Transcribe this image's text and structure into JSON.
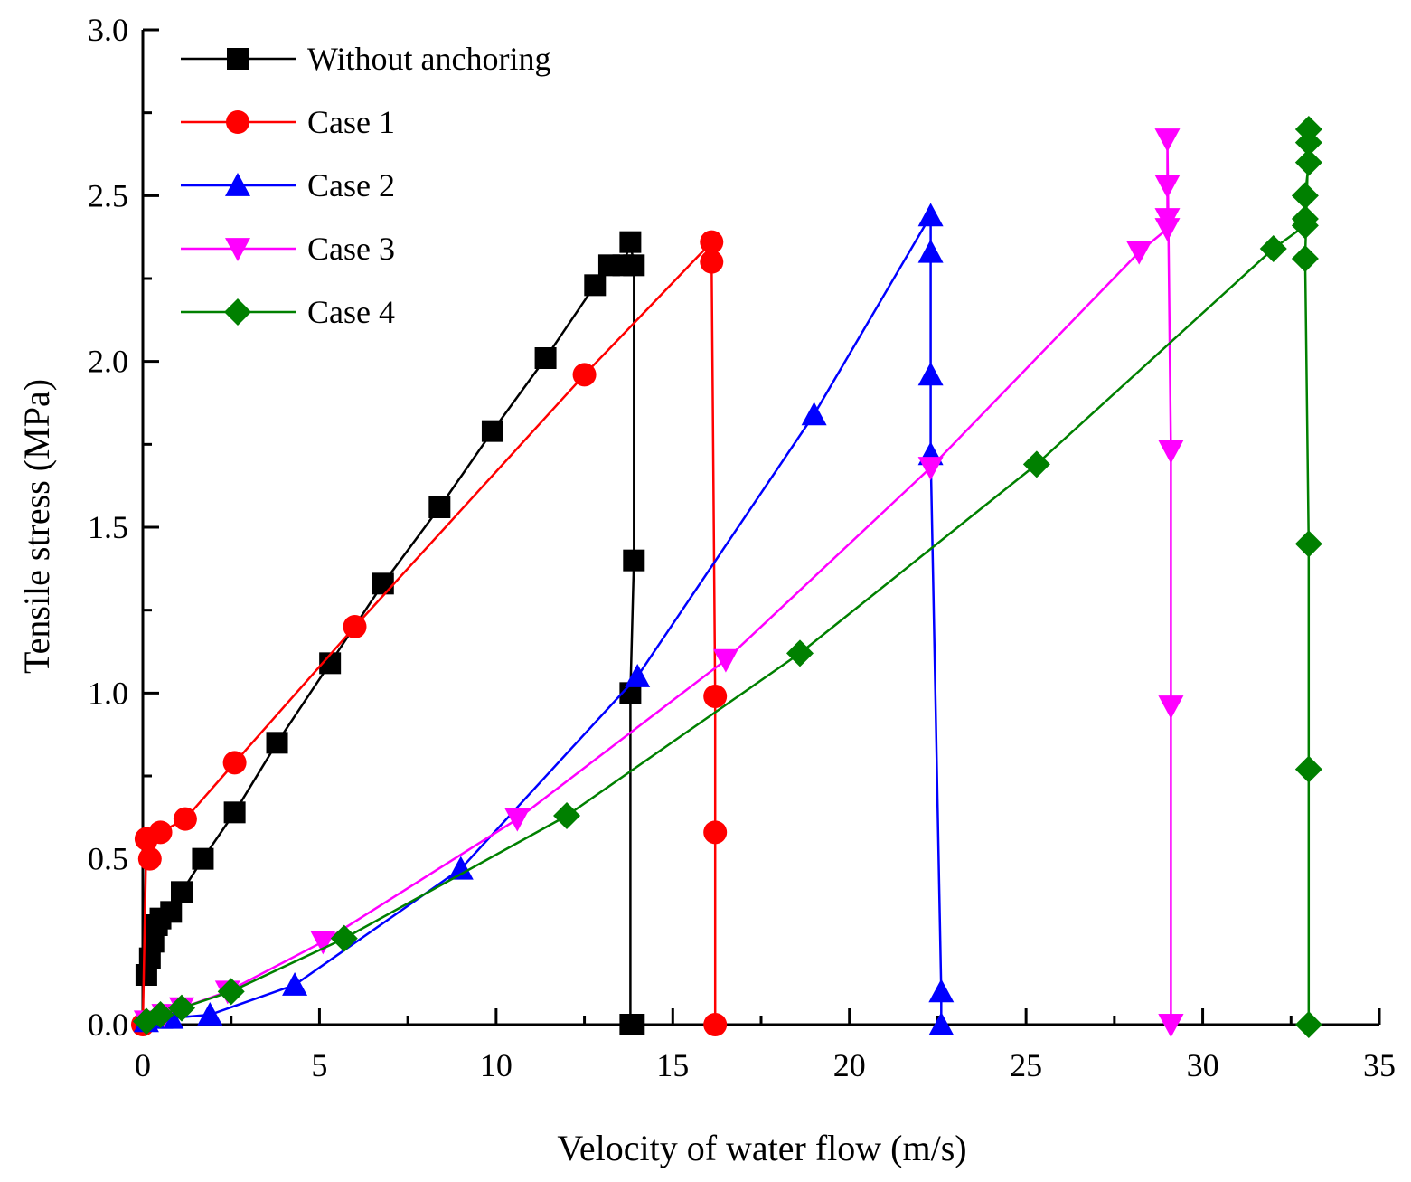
{
  "chart_data": {
    "type": "line",
    "xlabel": "Velocity of water flow (m/s)",
    "ylabel": "Tensile stress (MPa)",
    "xlim": [
      0,
      35
    ],
    "ylim": [
      0,
      3.0
    ],
    "x_ticks": [
      "0",
      "5",
      "10",
      "15",
      "20",
      "25",
      "30",
      "35"
    ],
    "y_ticks": [
      "0.0",
      "0.5",
      "1.0",
      "1.5",
      "2.0",
      "2.5",
      "3.0"
    ],
    "grid": false,
    "legend_position": "top-left",
    "series": [
      {
        "name": "Without anchoring",
        "color": "#000000",
        "marker": "square",
        "x": [
          0.1,
          0.2,
          0.3,
          0.4,
          0.5,
          0.8,
          1.1,
          1.7,
          2.6,
          3.8,
          5.3,
          6.8,
          8.4,
          9.9,
          11.4,
          12.8,
          13.2,
          13.6,
          13.8,
          13.9,
          13.9,
          13.8,
          13.8,
          13.9
        ],
        "y": [
          0.15,
          0.2,
          0.25,
          0.3,
          0.32,
          0.34,
          0.4,
          0.5,
          0.64,
          0.85,
          1.09,
          1.33,
          1.56,
          1.79,
          2.01,
          2.23,
          2.29,
          2.29,
          2.36,
          2.29,
          1.4,
          1.0,
          0.0,
          0.0
        ]
      },
      {
        "name": "Case 1",
        "color": "#ff0000",
        "marker": "circle",
        "x": [
          0.0,
          0.1,
          0.2,
          0.5,
          1.2,
          2.6,
          6.0,
          12.5,
          16.1,
          16.1,
          16.2,
          16.2,
          16.2
        ],
        "y": [
          0.0,
          0.56,
          0.5,
          0.58,
          0.62,
          0.79,
          1.2,
          1.96,
          2.36,
          2.3,
          0.99,
          0.58,
          0.0
        ]
      },
      {
        "name": "Case 2",
        "color": "#0000ff",
        "marker": "triangle-up",
        "x": [
          0.1,
          0.5,
          0.8,
          1.9,
          4.3,
          9.0,
          14.0,
          19.0,
          22.3,
          22.3,
          22.3,
          22.3,
          22.6,
          22.6
        ],
        "y": [
          0.01,
          0.02,
          0.02,
          0.03,
          0.12,
          0.47,
          1.05,
          1.84,
          2.44,
          2.33,
          1.96,
          1.72,
          0.1,
          0.0
        ]
      },
      {
        "name": "Case 3",
        "color": "#ff00ff",
        "marker": "triangle-down",
        "x": [
          0.1,
          0.6,
          1.1,
          2.4,
          5.1,
          10.6,
          16.5,
          22.3,
          28.2,
          29.0,
          29.0,
          29.0,
          29.0,
          29.1,
          29.1,
          29.1,
          29.1
        ],
        "y": [
          0.01,
          0.03,
          0.05,
          0.1,
          0.25,
          0.62,
          1.1,
          1.68,
          2.33,
          2.4,
          2.43,
          2.53,
          2.67,
          1.73,
          0.96,
          0.0,
          0.0
        ]
      },
      {
        "name": "Case 4",
        "color": "#008000",
        "marker": "diamond",
        "x": [
          0.1,
          0.5,
          1.1,
          2.5,
          5.7,
          12.0,
          18.6,
          25.3,
          32.0,
          32.9,
          32.9,
          32.9,
          33.0,
          33.0,
          33.0,
          32.9,
          33.0,
          33.0,
          33.0
        ],
        "y": [
          0.01,
          0.03,
          0.05,
          0.1,
          0.26,
          0.63,
          1.12,
          1.69,
          2.34,
          2.41,
          2.43,
          2.5,
          2.6,
          2.66,
          2.7,
          2.31,
          1.45,
          0.77,
          0.0
        ]
      }
    ]
  }
}
